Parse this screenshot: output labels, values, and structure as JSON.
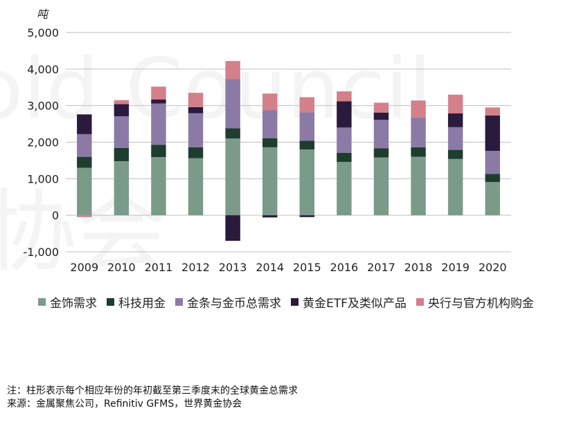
{
  "chart_data": {
    "type": "bar",
    "stacked": true,
    "unit_label": "吨",
    "categories": [
      "2009",
      "2010",
      "2011",
      "2012",
      "2013",
      "2014",
      "2015",
      "2016",
      "2017",
      "2018",
      "2019",
      "2020"
    ],
    "ylim": [
      -1000,
      5000
    ],
    "yticks": [
      -1000,
      0,
      1000,
      2000,
      3000,
      4000,
      5000
    ],
    "ytick_labels": [
      "-1,000",
      "0",
      "1,000",
      "2,000",
      "3,000",
      "4,000",
      "5,000"
    ],
    "grid": true,
    "legend_position": "bottom",
    "series": [
      {
        "name": "金饰需求",
        "color": "#7a9a8a",
        "values": [
          1300,
          1480,
          1590,
          1560,
          2100,
          1860,
          1800,
          1460,
          1580,
          1600,
          1540,
          910
        ]
      },
      {
        "name": "科技用金",
        "color": "#1f3d2e",
        "values": [
          300,
          360,
          340,
          300,
          280,
          250,
          240,
          250,
          250,
          260,
          250,
          220
        ]
      },
      {
        "name": "金条与金币总需求",
        "color": "#8b7aa6",
        "values": [
          620,
          870,
          1130,
          930,
          1350,
          760,
          780,
          690,
          780,
          810,
          620,
          630
        ]
      },
      {
        "name": "黄金ETF及类似产品",
        "color": "#2a1a3d",
        "values": [
          540,
          330,
          110,
          170,
          -700,
          -60,
          -50,
          720,
          200,
          0,
          380,
          970
        ]
      },
      {
        "name": "央行与官方机构购金",
        "color": "#d3808a",
        "values": [
          -50,
          110,
          350,
          390,
          490,
          460,
          410,
          270,
          270,
          470,
          510,
          220
        ]
      }
    ]
  },
  "watermark": {
    "line1": "old Council",
    "line2": "协会"
  },
  "notes": {
    "line1": "注：柱形表示每个相应年份的年初截至第三季度末的全球黄金总需求",
    "line2": "来源：金属聚焦公司，Refinitiv GFMS，世界黄金协会"
  }
}
